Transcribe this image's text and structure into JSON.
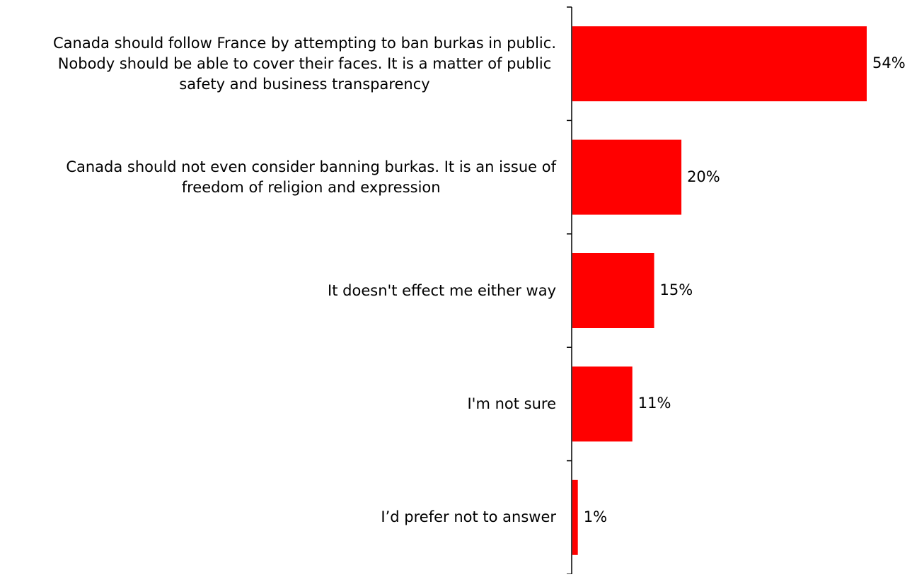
{
  "chart_data": {
    "type": "bar",
    "orientation": "horizontal",
    "categories": [
      "Canada should follow France by attempting to ban burkas in public. Nobody should be able to cover their faces.  It is a matter of public safety and business transparency",
      "Canada should not even consider banning burkas.  It is an issue of freedom of religion and expression",
      "It doesn't effect me either way",
      "I'm not sure",
      "I’d prefer not to answer"
    ],
    "category_lines": [
      [
        "Canada should follow France by attempting to ban burkas in public.",
        "Nobody should be able to cover their faces.  It is a matter of public",
        "safety and business transparency"
      ],
      [
        "Canada should not even consider banning burkas.  It is an issue of",
        "freedom of religion and expression"
      ],
      [
        "It doesn't effect me either way"
      ],
      [
        "I'm not sure"
      ],
      [
        "I’d prefer not to answer"
      ]
    ],
    "values": [
      54,
      20,
      15,
      11,
      1
    ],
    "value_labels": [
      "54%",
      "20%",
      "15%",
      "11%",
      "1%"
    ],
    "bar_color": "#ff0000",
    "xlim": [
      0,
      54
    ],
    "grid": false,
    "legend": "none",
    "title": "",
    "xlabel": "",
    "ylabel": ""
  }
}
